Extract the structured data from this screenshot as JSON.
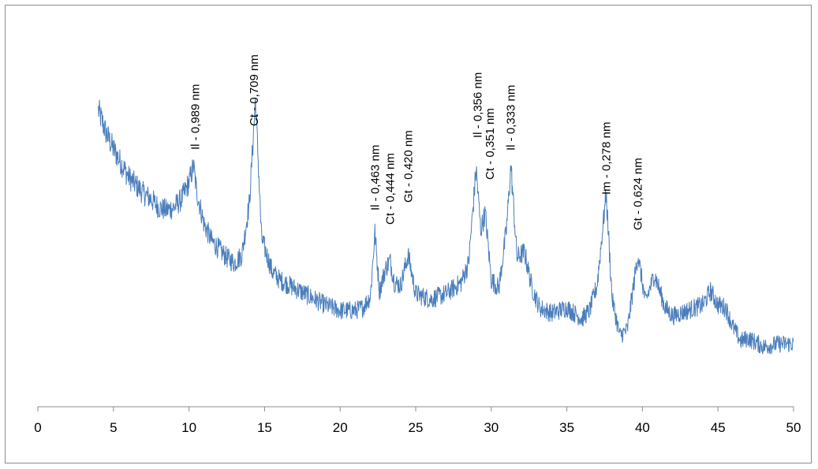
{
  "chart_data": {
    "type": "line",
    "title": "",
    "xlabel": "",
    "ylabel": "",
    "xlim": [
      0,
      50
    ],
    "x_ticks": [
      "0",
      "5",
      "10",
      "15",
      "20",
      "25",
      "30",
      "35",
      "40",
      "45",
      "50"
    ],
    "y_axis_visible": false,
    "grid": false,
    "legend": "none",
    "series": [
      {
        "color": "#4a7ebb",
        "x": [
          4.0,
          4.5,
          5.0,
          5.5,
          6.0,
          6.5,
          7.0,
          7.5,
          8.0,
          8.5,
          9.0,
          9.5,
          10.0,
          10.3,
          10.5,
          11.0,
          11.5,
          12.0,
          12.5,
          13.0,
          13.5,
          14.0,
          14.4,
          14.8,
          15.5,
          16.0,
          17.0,
          18.0,
          19.0,
          20.0,
          21.0,
          21.5,
          22.0,
          22.3,
          22.6,
          23.0,
          23.3,
          23.6,
          24.0,
          24.5,
          25.0,
          26.0,
          27.0,
          28.0,
          28.5,
          29.0,
          29.3,
          29.6,
          30.0,
          30.5,
          31.0,
          31.3,
          31.7,
          32.2,
          32.7,
          33.2,
          34.0,
          35.0,
          36.0,
          36.5,
          37.0,
          37.6,
          38.0,
          38.5,
          39.0,
          39.7,
          40.2,
          40.8,
          41.5,
          42.0,
          43.0,
          44.0,
          44.5,
          45.0,
          45.5,
          46.0,
          46.5,
          47.0,
          48.0,
          49.0,
          50.0
        ],
        "y": [
          93,
          85,
          79,
          74,
          69,
          66,
          63,
          61,
          58,
          57,
          58,
          61,
          67,
          73,
          64,
          52,
          46,
          43,
          40,
          38,
          41,
          60,
          97,
          47,
          35,
          32,
          29,
          26,
          23,
          21,
          21,
          22,
          26,
          49,
          28,
          36,
          39,
          31,
          30,
          41,
          27,
          25,
          27,
          31,
          38,
          72,
          50,
          56,
          32,
          29,
          50,
          73,
          40,
          42,
          29,
          22,
          20,
          22,
          18,
          21,
          30,
          63,
          25,
          12,
          14,
          41,
          24,
          34,
          22,
          19,
          21,
          23,
          28,
          23,
          22,
          15,
          10,
          11,
          8,
          9,
          9
        ]
      }
    ],
    "annotations": [
      {
        "text": "Il - 0,989 nm",
        "x": 10.4
      },
      {
        "text": "Ct - 0,709 nm",
        "x": 14.3
      },
      {
        "text": "Il - 0,463 nm",
        "x": 22.3
      },
      {
        "text": "Ct - 0,444 nm",
        "x": 23.3
      },
      {
        "text": "Gt - 0,420 nm",
        "x": 24.5
      },
      {
        "text": "Il - 0,356 nm",
        "x": 29.1
      },
      {
        "text": "Ct - 0,351 nm",
        "x": 29.9
      },
      {
        "text": "Il - 0,333 nm",
        "x": 31.3
      },
      {
        "text": "Im - 0,278 nm",
        "x": 37.6
      },
      {
        "text": "Gt - 0,624 nm",
        "x": 39.7
      }
    ]
  }
}
